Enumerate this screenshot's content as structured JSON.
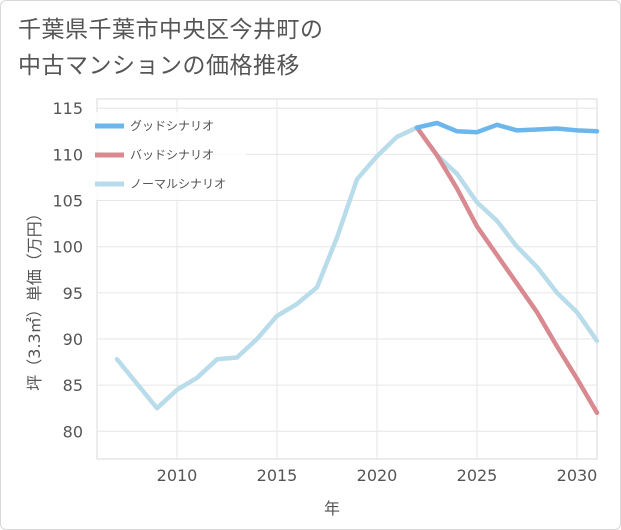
{
  "title_line1": "千葉県千葉市中央区今井町の",
  "title_line2": "中古マンションの価格推移",
  "chart_data": {
    "type": "line",
    "xlabel": "年",
    "ylabel": "坪（3.3㎡）単価（万円）",
    "xlim": [
      2006,
      2031
    ],
    "ylim": [
      77,
      116
    ],
    "x_ticks": [
      2010,
      2015,
      2020,
      2025,
      2030
    ],
    "y_ticks": [
      80,
      85,
      90,
      95,
      100,
      105,
      110,
      115
    ],
    "grid": true,
    "legend_position": "top-left",
    "series": [
      {
        "name": "グッドシナリオ",
        "color": "#6bb6ec",
        "x": [
          2022,
          2023,
          2024,
          2025,
          2026,
          2027,
          2028,
          2029,
          2030,
          2031
        ],
        "values": [
          112.9,
          113.4,
          112.5,
          112.4,
          113.2,
          112.6,
          112.7,
          112.8,
          112.6,
          112.5
        ]
      },
      {
        "name": "バッドシナリオ",
        "color": "#d98a90",
        "x": [
          2022,
          2023,
          2024,
          2025,
          2026,
          2027,
          2028,
          2029,
          2030,
          2031
        ],
        "values": [
          112.9,
          109.9,
          106.3,
          102.2,
          99.1,
          96.0,
          92.9,
          89.2,
          85.7,
          82.0
        ]
      },
      {
        "name": "ノーマルシナリオ",
        "color": "#b9dceb",
        "x": [
          2007,
          2009,
          2010,
          2011,
          2012,
          2013,
          2014,
          2015,
          2016,
          2017,
          2018,
          2019,
          2020,
          2021,
          2022,
          2023,
          2024,
          2025,
          2026,
          2027,
          2028,
          2029,
          2030,
          2031
        ],
        "values": [
          87.8,
          82.5,
          84.5,
          85.8,
          87.8,
          88.0,
          90.0,
          92.5,
          93.8,
          95.6,
          101.0,
          107.3,
          109.8,
          111.9,
          112.9,
          109.9,
          107.9,
          104.8,
          102.8,
          100.0,
          97.8,
          95.0,
          92.9,
          89.8
        ]
      }
    ]
  }
}
